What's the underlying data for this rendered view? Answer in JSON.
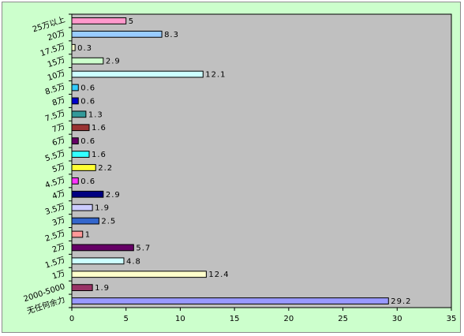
{
  "chart_data": {
    "type": "bar",
    "orientation": "horizontal",
    "title": "",
    "xlabel": "",
    "ylabel": "",
    "xlim": [
      0,
      35
    ],
    "x_ticks": [
      0,
      5,
      10,
      15,
      20,
      25,
      30,
      35
    ],
    "grid": false,
    "legend": "none",
    "plot_background": "#c0c0c0",
    "chart_background": "#ccffcc",
    "categories": [
      "25万以上",
      "20万",
      "17.5万",
      "15万",
      "10万",
      "8.5万",
      "8万",
      "7.5万",
      "7万",
      "6万",
      "5.5万",
      "5万",
      "4.5万",
      "4万",
      "3.5万",
      "3万",
      "2.5万",
      "2万",
      "1.5万",
      "1万",
      "2000-5000",
      "无任何余力"
    ],
    "values": [
      5,
      8.3,
      0.3,
      2.9,
      12.1,
      0.6,
      0.6,
      1.3,
      1.6,
      0.6,
      1.6,
      2.2,
      0.6,
      2.9,
      1.9,
      2.5,
      1,
      5.7,
      4.8,
      12.4,
      1.9,
      29.2
    ],
    "value_labels": [
      "5",
      "8.3",
      "0.3",
      "2.9",
      "12.1",
      "0.6",
      "0.6",
      "1.3",
      "1.6",
      "0.6",
      "1.6",
      "2.2",
      "0.6",
      "2.9",
      "1.9",
      "2.5",
      "1",
      "5.7",
      "4.8",
      "12.4",
      "1.9",
      "29.2"
    ],
    "colors": [
      "#ff99cc",
      "#99ccff",
      "#ffffcc",
      "#ccffcc",
      "#ccffff",
      "#33ccff",
      "#0000cc",
      "#339999",
      "#993333",
      "#660066",
      "#33ffff",
      "#ffff33",
      "#ff33ff",
      "#000080",
      "#ccccff",
      "#3366cc",
      "#ff9999",
      "#660066",
      "#ccffff",
      "#ffffcc",
      "#993366",
      "#9999ff"
    ],
    "row_labels": [
      {
        "text": "25万以上",
        "bar_index": 0
      },
      {
        "text": "20万",
        "bar_index": 1
      },
      {
        "text": "17.5万",
        "bar_index": 2
      },
      {
        "text": "15万",
        "bar_index": 3
      },
      {
        "text": "10万",
        "bar_index": 4
      },
      {
        "text": "8.5万",
        "bar_index": 5
      },
      {
        "text": "8万",
        "bar_index": 6
      },
      {
        "text": "7.5万",
        "bar_index": 7
      },
      {
        "text": "7万",
        "bar_index": 8
      },
      {
        "text": "6万",
        "bar_index": 9
      },
      {
        "text": "5.5万",
        "bar_index": 10
      },
      {
        "text": "5万",
        "bar_index": 11
      },
      {
        "text": "4.5万",
        "bar_index": 12
      },
      {
        "text": "4万",
        "bar_index": 13
      },
      {
        "text": "3.5万",
        "bar_index": 14
      },
      {
        "text": "3万",
        "bar_index": 15
      },
      {
        "text": "2.5万",
        "bar_index": 16
      },
      {
        "text": "2万",
        "bar_index": 17
      },
      {
        "text": "1.5万",
        "bar_index": 18
      },
      {
        "text": "1万",
        "bar_index": 19
      },
      {
        "text": "2000-5000",
        "bar_index": 20
      },
      {
        "text": "无任何余力",
        "bar_index": 21
      }
    ]
  }
}
